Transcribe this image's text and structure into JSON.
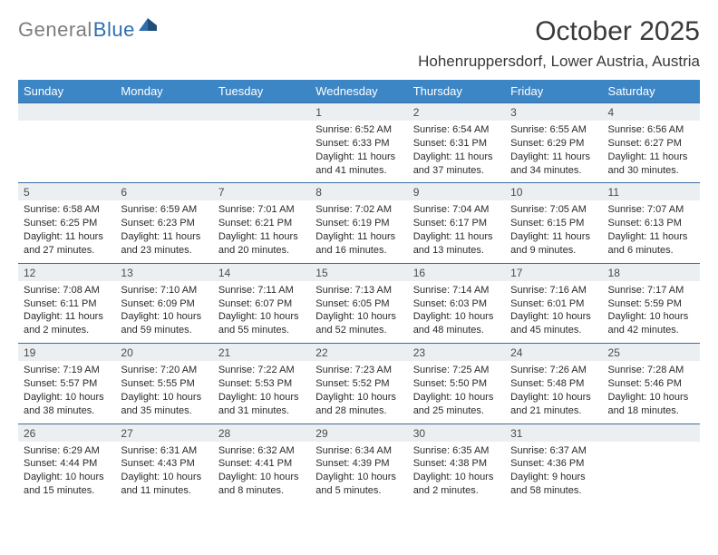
{
  "logo": {
    "gray": "General",
    "blue": "Blue"
  },
  "title": "October 2025",
  "location": "Hohenruppersdorf, Lower Austria, Austria",
  "colors": {
    "header_bg": "#3d86c6",
    "header_text": "#ffffff",
    "daynum_bg": "#eceff1",
    "row_border": "#3d6ea0",
    "logo_gray": "#7d7d7d",
    "logo_blue": "#2f6fb0",
    "body_text": "#2a2a2a"
  },
  "day_headers": [
    "Sunday",
    "Monday",
    "Tuesday",
    "Wednesday",
    "Thursday",
    "Friday",
    "Saturday"
  ],
  "weeks": [
    [
      null,
      null,
      null,
      {
        "n": "1",
        "sr": "Sunrise: 6:52 AM",
        "ss": "Sunset: 6:33 PM",
        "d1": "Daylight: 11 hours",
        "d2": "and 41 minutes."
      },
      {
        "n": "2",
        "sr": "Sunrise: 6:54 AM",
        "ss": "Sunset: 6:31 PM",
        "d1": "Daylight: 11 hours",
        "d2": "and 37 minutes."
      },
      {
        "n": "3",
        "sr": "Sunrise: 6:55 AM",
        "ss": "Sunset: 6:29 PM",
        "d1": "Daylight: 11 hours",
        "d2": "and 34 minutes."
      },
      {
        "n": "4",
        "sr": "Sunrise: 6:56 AM",
        "ss": "Sunset: 6:27 PM",
        "d1": "Daylight: 11 hours",
        "d2": "and 30 minutes."
      }
    ],
    [
      {
        "n": "5",
        "sr": "Sunrise: 6:58 AM",
        "ss": "Sunset: 6:25 PM",
        "d1": "Daylight: 11 hours",
        "d2": "and 27 minutes."
      },
      {
        "n": "6",
        "sr": "Sunrise: 6:59 AM",
        "ss": "Sunset: 6:23 PM",
        "d1": "Daylight: 11 hours",
        "d2": "and 23 minutes."
      },
      {
        "n": "7",
        "sr": "Sunrise: 7:01 AM",
        "ss": "Sunset: 6:21 PM",
        "d1": "Daylight: 11 hours",
        "d2": "and 20 minutes."
      },
      {
        "n": "8",
        "sr": "Sunrise: 7:02 AM",
        "ss": "Sunset: 6:19 PM",
        "d1": "Daylight: 11 hours",
        "d2": "and 16 minutes."
      },
      {
        "n": "9",
        "sr": "Sunrise: 7:04 AM",
        "ss": "Sunset: 6:17 PM",
        "d1": "Daylight: 11 hours",
        "d2": "and 13 minutes."
      },
      {
        "n": "10",
        "sr": "Sunrise: 7:05 AM",
        "ss": "Sunset: 6:15 PM",
        "d1": "Daylight: 11 hours",
        "d2": "and 9 minutes."
      },
      {
        "n": "11",
        "sr": "Sunrise: 7:07 AM",
        "ss": "Sunset: 6:13 PM",
        "d1": "Daylight: 11 hours",
        "d2": "and 6 minutes."
      }
    ],
    [
      {
        "n": "12",
        "sr": "Sunrise: 7:08 AM",
        "ss": "Sunset: 6:11 PM",
        "d1": "Daylight: 11 hours",
        "d2": "and 2 minutes."
      },
      {
        "n": "13",
        "sr": "Sunrise: 7:10 AM",
        "ss": "Sunset: 6:09 PM",
        "d1": "Daylight: 10 hours",
        "d2": "and 59 minutes."
      },
      {
        "n": "14",
        "sr": "Sunrise: 7:11 AM",
        "ss": "Sunset: 6:07 PM",
        "d1": "Daylight: 10 hours",
        "d2": "and 55 minutes."
      },
      {
        "n": "15",
        "sr": "Sunrise: 7:13 AM",
        "ss": "Sunset: 6:05 PM",
        "d1": "Daylight: 10 hours",
        "d2": "and 52 minutes."
      },
      {
        "n": "16",
        "sr": "Sunrise: 7:14 AM",
        "ss": "Sunset: 6:03 PM",
        "d1": "Daylight: 10 hours",
        "d2": "and 48 minutes."
      },
      {
        "n": "17",
        "sr": "Sunrise: 7:16 AM",
        "ss": "Sunset: 6:01 PM",
        "d1": "Daylight: 10 hours",
        "d2": "and 45 minutes."
      },
      {
        "n": "18",
        "sr": "Sunrise: 7:17 AM",
        "ss": "Sunset: 5:59 PM",
        "d1": "Daylight: 10 hours",
        "d2": "and 42 minutes."
      }
    ],
    [
      {
        "n": "19",
        "sr": "Sunrise: 7:19 AM",
        "ss": "Sunset: 5:57 PM",
        "d1": "Daylight: 10 hours",
        "d2": "and 38 minutes."
      },
      {
        "n": "20",
        "sr": "Sunrise: 7:20 AM",
        "ss": "Sunset: 5:55 PM",
        "d1": "Daylight: 10 hours",
        "d2": "and 35 minutes."
      },
      {
        "n": "21",
        "sr": "Sunrise: 7:22 AM",
        "ss": "Sunset: 5:53 PM",
        "d1": "Daylight: 10 hours",
        "d2": "and 31 minutes."
      },
      {
        "n": "22",
        "sr": "Sunrise: 7:23 AM",
        "ss": "Sunset: 5:52 PM",
        "d1": "Daylight: 10 hours",
        "d2": "and 28 minutes."
      },
      {
        "n": "23",
        "sr": "Sunrise: 7:25 AM",
        "ss": "Sunset: 5:50 PM",
        "d1": "Daylight: 10 hours",
        "d2": "and 25 minutes."
      },
      {
        "n": "24",
        "sr": "Sunrise: 7:26 AM",
        "ss": "Sunset: 5:48 PM",
        "d1": "Daylight: 10 hours",
        "d2": "and 21 minutes."
      },
      {
        "n": "25",
        "sr": "Sunrise: 7:28 AM",
        "ss": "Sunset: 5:46 PM",
        "d1": "Daylight: 10 hours",
        "d2": "and 18 minutes."
      }
    ],
    [
      {
        "n": "26",
        "sr": "Sunrise: 6:29 AM",
        "ss": "Sunset: 4:44 PM",
        "d1": "Daylight: 10 hours",
        "d2": "and 15 minutes."
      },
      {
        "n": "27",
        "sr": "Sunrise: 6:31 AM",
        "ss": "Sunset: 4:43 PM",
        "d1": "Daylight: 10 hours",
        "d2": "and 11 minutes."
      },
      {
        "n": "28",
        "sr": "Sunrise: 6:32 AM",
        "ss": "Sunset: 4:41 PM",
        "d1": "Daylight: 10 hours",
        "d2": "and 8 minutes."
      },
      {
        "n": "29",
        "sr": "Sunrise: 6:34 AM",
        "ss": "Sunset: 4:39 PM",
        "d1": "Daylight: 10 hours",
        "d2": "and 5 minutes."
      },
      {
        "n": "30",
        "sr": "Sunrise: 6:35 AM",
        "ss": "Sunset: 4:38 PM",
        "d1": "Daylight: 10 hours",
        "d2": "and 2 minutes."
      },
      {
        "n": "31",
        "sr": "Sunrise: 6:37 AM",
        "ss": "Sunset: 4:36 PM",
        "d1": "Daylight: 9 hours",
        "d2": "and 58 minutes."
      },
      null
    ]
  ]
}
